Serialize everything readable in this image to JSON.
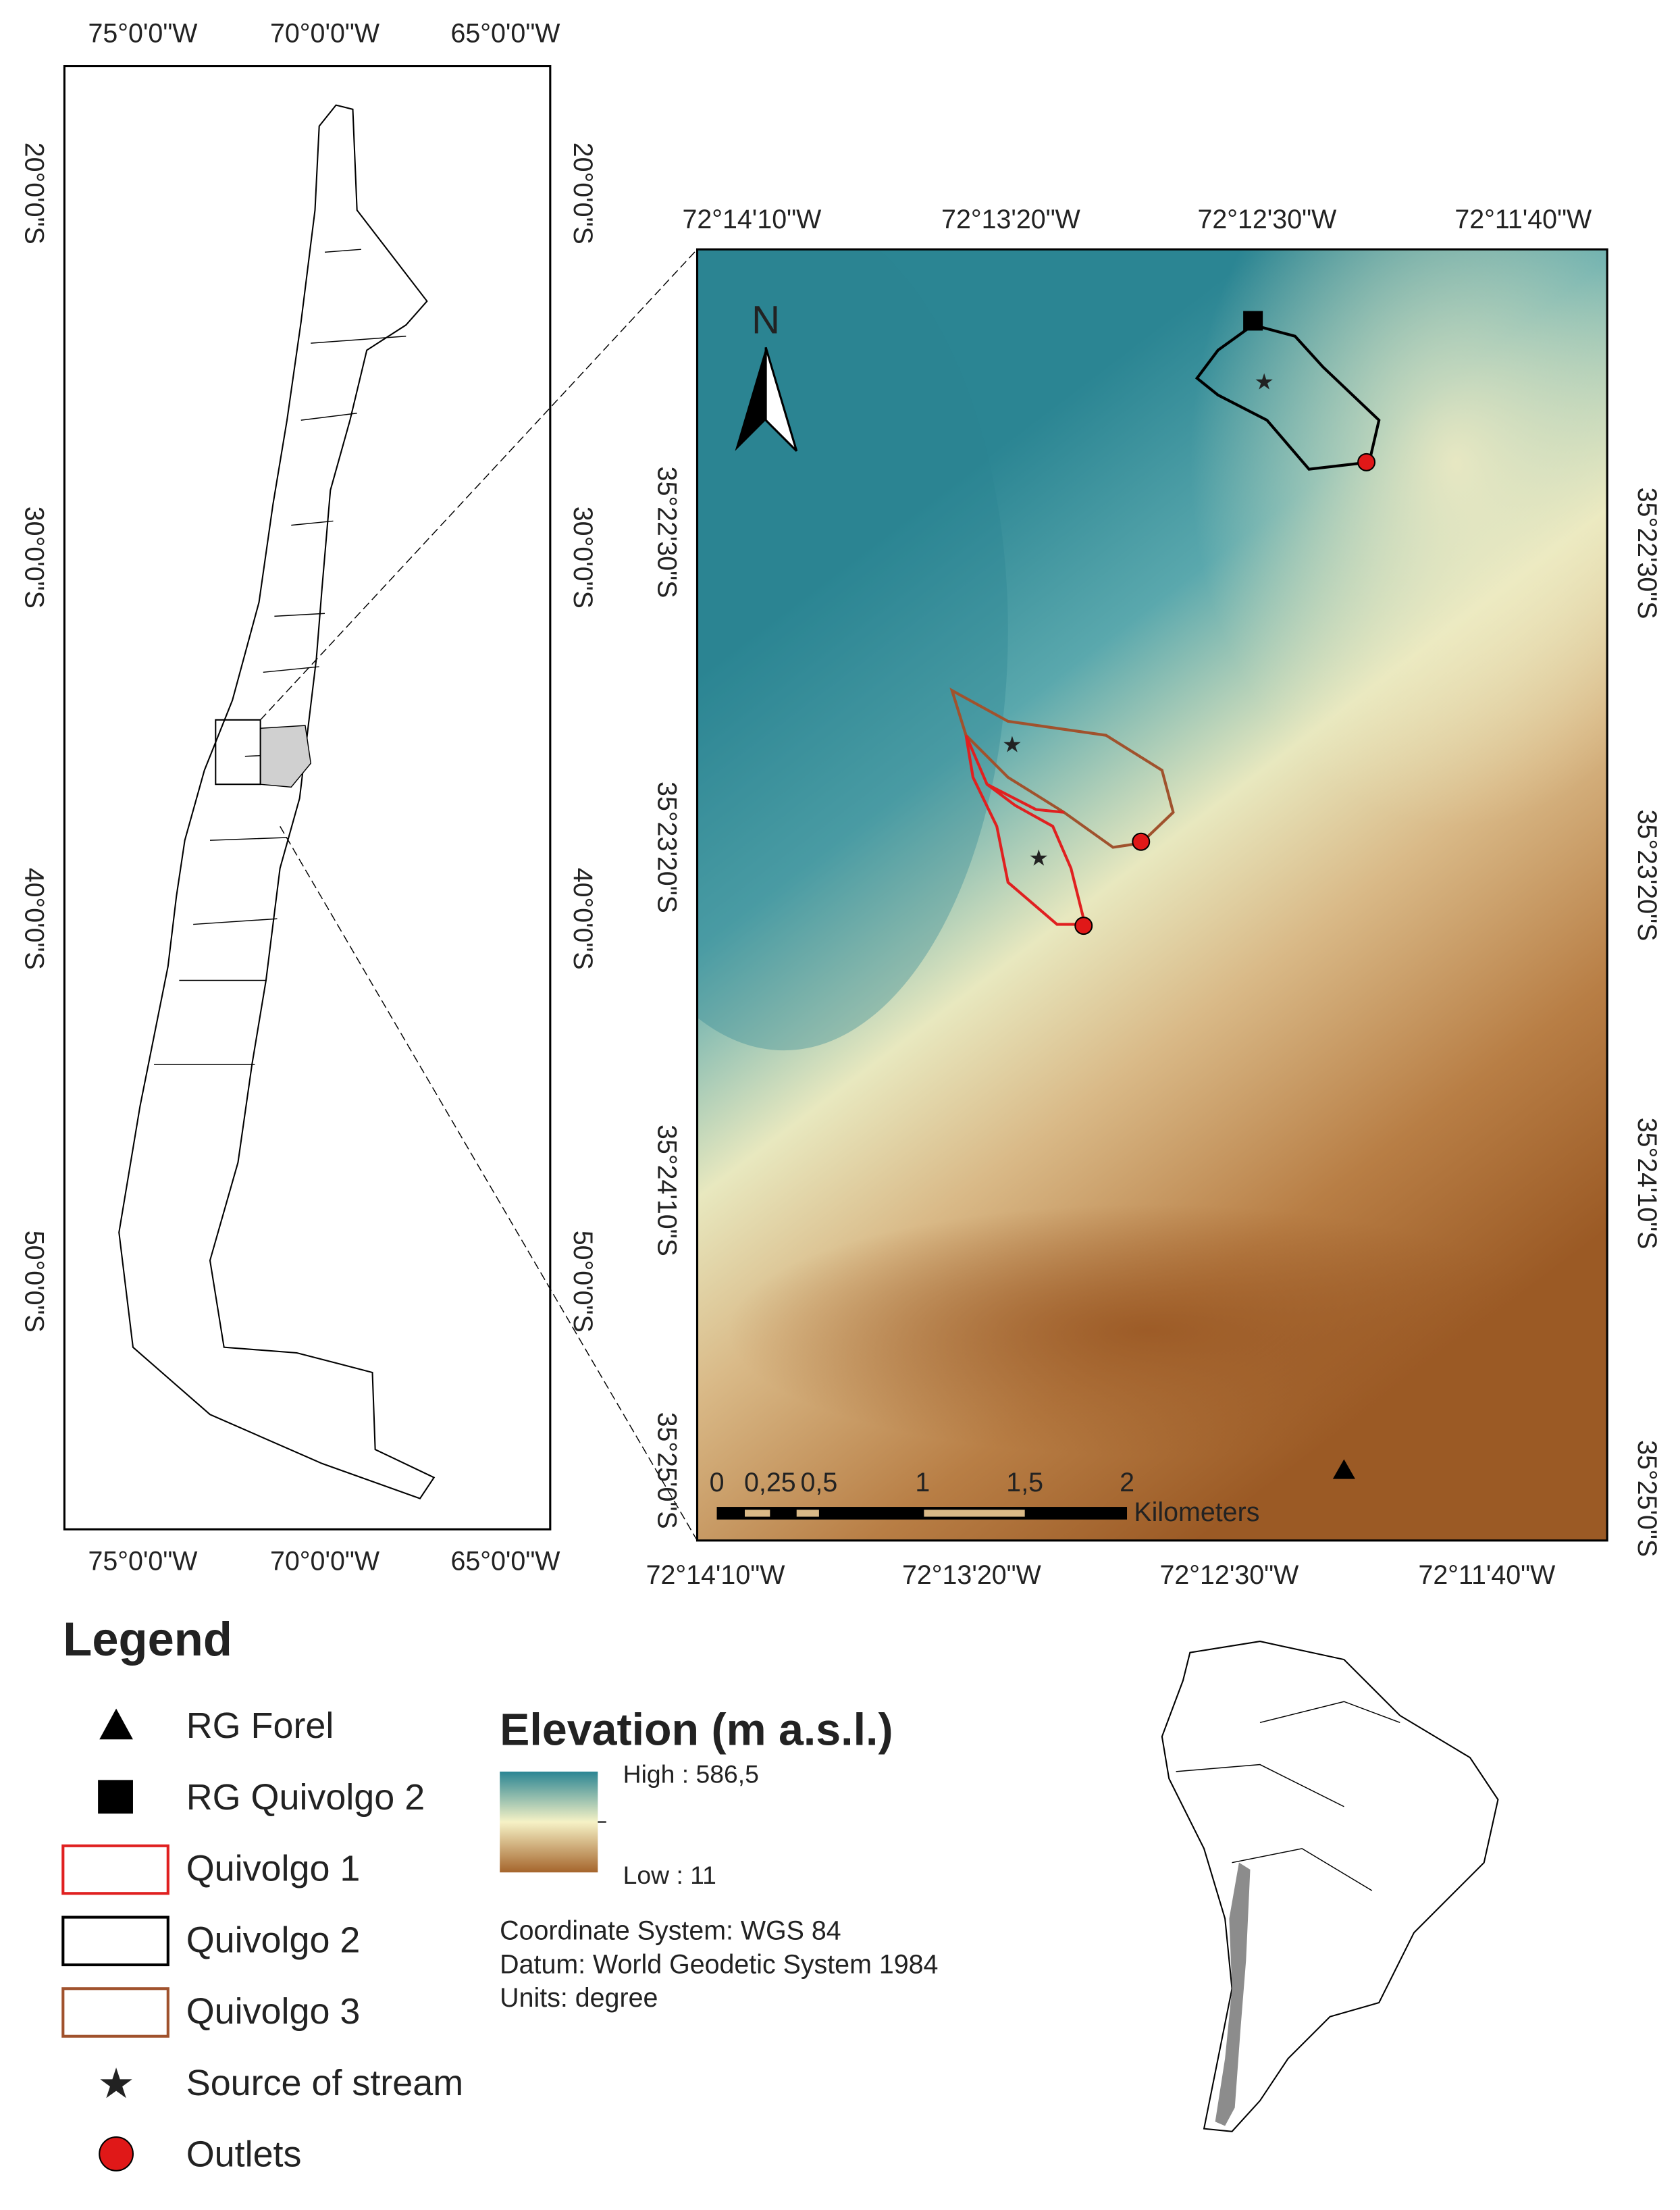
{
  "overview_map": {
    "top_labels": [
      "75°0'0\"W",
      "70°0'0\"W",
      "65°0'0\"W"
    ],
    "bottom_labels": [
      "75°0'0\"W",
      "70°0'0\"W",
      "65°0'0\"W"
    ],
    "left_labels": [
      "20°0'0\"S",
      "30°0'0\"S",
      "40°0'0\"S",
      "50°0'0\"S"
    ],
    "right_labels": [
      "20°0'0\"S",
      "30°0'0\"S",
      "40°0'0\"S",
      "50°0'0\"S"
    ]
  },
  "main_map": {
    "north": "N",
    "top_labels": [
      "72°14'10\"W",
      "72°13'20\"W",
      "72°12'30\"W",
      "72°11'40\"W"
    ],
    "bottom_labels": [
      "72°14'10\"W",
      "72°13'20\"W",
      "72°12'30\"W",
      "72°11'40\"W"
    ],
    "left_labels": [
      "35°22'30\"S",
      "35°23'20\"S",
      "35°24'10\"S",
      "35°25'0\"S"
    ],
    "right_labels": [
      "35°22'30\"S",
      "35°23'20\"S",
      "35°24'10\"S",
      "35°25'0\"S"
    ],
    "scale_labels": [
      "0",
      "0,25",
      "0,5",
      "1",
      "1,5",
      "2"
    ],
    "scale_unit": "Kilometers"
  },
  "legend": {
    "title": "Legend",
    "items": [
      "RG Forel",
      "RG Quivolgo 2",
      "Quivolgo 1",
      "Quivolgo 2",
      "Quivolgo 3",
      "Source of stream",
      "Outlets"
    ]
  },
  "elevation": {
    "title": "Elevation (m a.s.l.)",
    "high": "High : 586,5",
    "low": "Low : 11"
  },
  "notes": [
    "Coordinate System: WGS 84",
    "Datum: World Geodetic System 1984",
    "Units: degree"
  ]
}
